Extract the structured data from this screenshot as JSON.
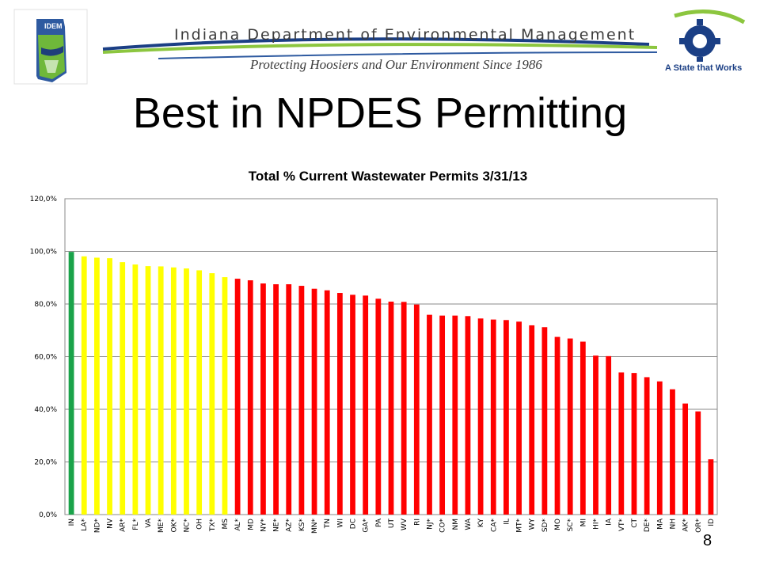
{
  "header": {
    "org_name": "Indiana Department of Environmental Management",
    "tagline": "Protecting Hoosiers and Our Environment Since 1986",
    "logo_left": "IDEM",
    "logo_right_text": "A State that Works"
  },
  "slide": {
    "title": "Best in NPDES Permitting",
    "page_number": "8"
  },
  "chart_data": {
    "type": "bar",
    "title": "Total % Current Wastewater Permits 3/31/13",
    "xlabel": "",
    "ylabel": "",
    "ylim": [
      0,
      120
    ],
    "yticks": [
      "0,0%",
      "20,0%",
      "40,0%",
      "60,0%",
      "80,0%",
      "100,0%",
      "120,0%"
    ],
    "grid": true,
    "categories": [
      "IN",
      "LA*",
      "ND*",
      "NV",
      "AR*",
      "FL*",
      "VA",
      "ME*",
      "OK*",
      "NC*",
      "OH",
      "TX*",
      "MS",
      "AL*",
      "MD",
      "NY*",
      "NE*",
      "AZ*",
      "KS*",
      "MN*",
      "TN",
      "WI",
      "DC",
      "GA*",
      "PA",
      "UT",
      "WV",
      "RI",
      "NJ*",
      "CO*",
      "NM",
      "WA",
      "KY",
      "CA*",
      "IL",
      "MT*",
      "WY",
      "SD*",
      "MO",
      "SC*",
      "MI",
      "HI*",
      "IA",
      "VT*",
      "CT",
      "DE*",
      "MA",
      "NH",
      "AK*",
      "OR*",
      "ID"
    ],
    "values": [
      99.8,
      98.1,
      97.6,
      97.4,
      95.9,
      95.0,
      94.4,
      94.3,
      93.9,
      93.5,
      92.8,
      91.7,
      90.2,
      89.6,
      89.0,
      87.8,
      87.5,
      87.5,
      86.9,
      85.8,
      85.2,
      84.2,
      83.5,
      83.2,
      82.0,
      80.9,
      80.8,
      79.8,
      75.9,
      75.6,
      75.6,
      75.4,
      74.5,
      74.1,
      73.9,
      73.3,
      71.9,
      71.2,
      67.5,
      66.9,
      65.7,
      60.4,
      60.2,
      54.0,
      53.8,
      52.2,
      50.6,
      47.6,
      42.2,
      39.2,
      21.0
    ],
    "colors": {
      "green": "#1aa34a",
      "yellow": "#ffff00",
      "red": "#ff0000"
    },
    "color_groups": {
      "green": [
        0
      ],
      "yellow": [
        1,
        12
      ],
      "red": [
        13,
        50
      ]
    }
  }
}
